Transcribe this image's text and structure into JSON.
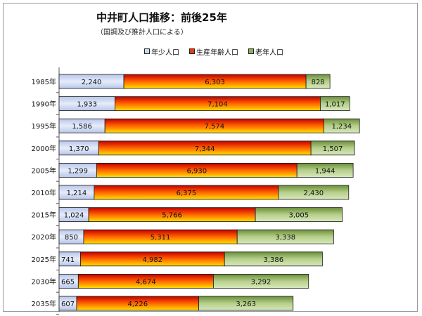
{
  "chart_data": {
    "type": "bar",
    "orientation": "horizontal",
    "stacked": true,
    "title": "中井町人口推移：前後25年",
    "subtitle": "（国調及び推計人口による）",
    "categories": [
      "1985年",
      "1990年",
      "1995年",
      "2000年",
      "2005年",
      "2010年",
      "2015年",
      "2020年",
      "2025年",
      "2030年",
      "2035年"
    ],
    "series": [
      {
        "name": "年少人口",
        "values": [
          2240,
          1933,
          1586,
          1370,
          1299,
          1214,
          1024,
          850,
          741,
          665,
          607
        ],
        "color": "#cfd8f0"
      },
      {
        "name": "生産年齢人口",
        "values": [
          6303,
          7104,
          7574,
          7344,
          6930,
          6375,
          5766,
          5311,
          4982,
          4674,
          4226
        ],
        "color": "#e83a0c"
      },
      {
        "name": "老年人口",
        "values": [
          828,
          1017,
          1234,
          1507,
          1944,
          2430,
          3005,
          3338,
          3386,
          3292,
          3263
        ],
        "color": "#8fb05e"
      }
    ],
    "value_labels": {
      "young": [
        "2,240",
        "1,933",
        "1,586",
        "1,370",
        "1,299",
        "1,214",
        "1,024",
        "850",
        "741",
        "665",
        "607"
      ],
      "working": [
        "6,303",
        "7,104",
        "7,574",
        "7,344",
        "6,930",
        "6,375",
        "5,766",
        "5,311",
        "4,982",
        "4,674",
        "4,226"
      ],
      "old": [
        "828",
        "1,017",
        "1,234",
        "1,507",
        "1,944",
        "2,430",
        "3,005",
        "3,338",
        "3,386",
        "3,292",
        "3,263"
      ]
    },
    "legend_position": "top",
    "grid": false
  }
}
